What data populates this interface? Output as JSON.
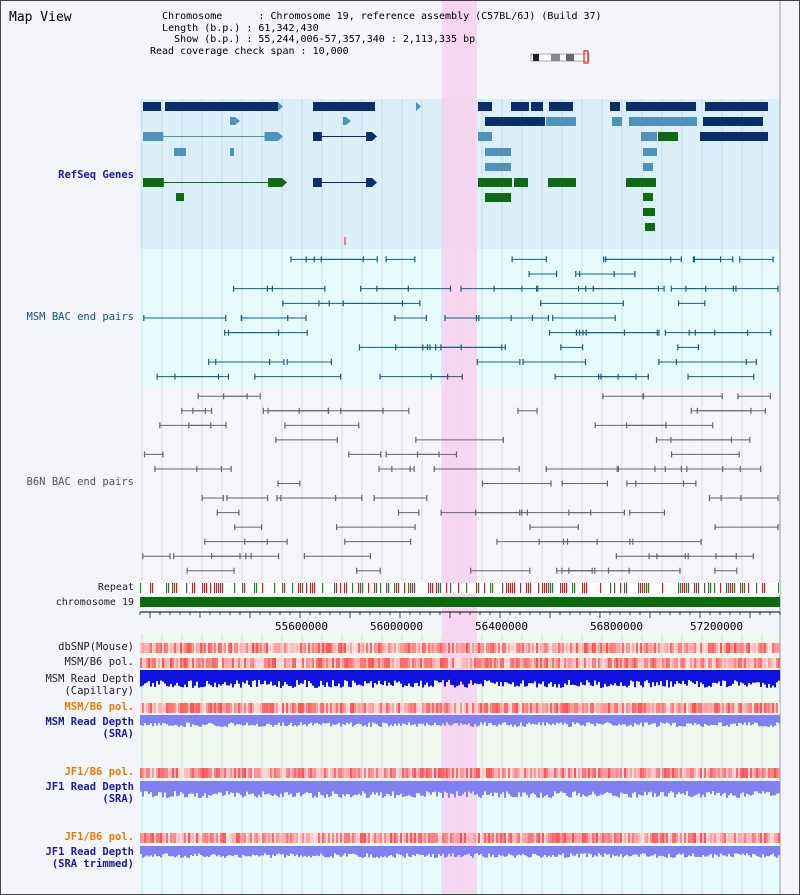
{
  "view": {
    "title": "Map View"
  },
  "info": {
    "chromosome_key": "Chromosome",
    "chromosome_val": "Chromosome 19, reference assembly (C57BL/6J) (Build 37)",
    "length_key": "Length (b.p.)",
    "length_val": "61,342,430",
    "show_key": "Show (b.p.)",
    "show_val": "55,244,006-57,357,340 : 2,113,335 bp",
    "coverage_key": "Read coverage check span",
    "coverage_val": "10,000"
  },
  "tracks": {
    "refseq": "RefSeq Genes",
    "msm_bac": "MSM BAC end pairs",
    "b6n_bac": "B6N BAC end pairs",
    "repeat": "Repeat",
    "chrom": "chromosome 19",
    "dbsnp": "dbSNP(Mouse)",
    "msm_b6_pol": "MSM/B6 pol.",
    "msm_depth_cap_1": "MSM Read Depth",
    "msm_depth_cap_2": "(Capillary)",
    "msm_b6_pol_2": "MSM/B6 pol.",
    "msm_depth_sra_1": "MSM Read Depth",
    "msm_depth_sra_2": "(SRA)",
    "jf1_b6_pol": "JF1/B6 pol.",
    "jf1_depth_sra_1": "JF1 Read Depth",
    "jf1_depth_sra_2": "(SRA)",
    "jf1_b6_pol_2": "JF1/B6 pol.",
    "jf1_depth_trim_1": "JF1 Read Depth",
    "jf1_depth_trim_2": "(SRA trimmed)"
  },
  "axis": {
    "ticks": [
      "55600000",
      "56000000",
      "56400000",
      "56800000",
      "57200000"
    ]
  },
  "colors": {
    "refseq_bg": "#dcf0fa",
    "msm_bg": "#e6fbfb",
    "b6n_bg": "#f5f5fa",
    "highlight": "#f6d3ef",
    "gene_dark": "#0b2e6b",
    "gene_light": "#4f93b8",
    "gene_green": "#0e6b12",
    "chrom_bar": "#0b6b10",
    "depth_blue": "#1010e0",
    "depth_light": "#8080f0"
  }
}
